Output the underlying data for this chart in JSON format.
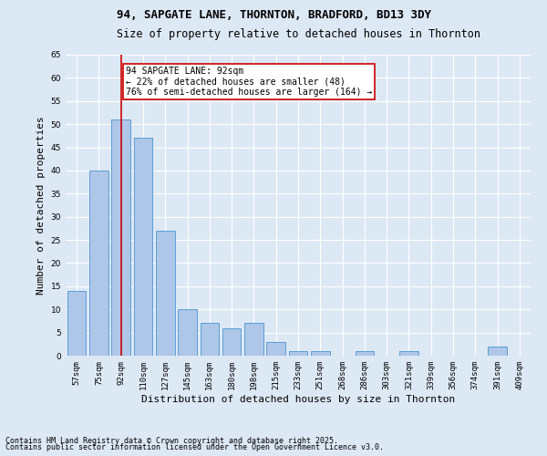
{
  "title": "94, SAPGATE LANE, THORNTON, BRADFORD, BD13 3DY",
  "subtitle": "Size of property relative to detached houses in Thornton",
  "xlabel": "Distribution of detached houses by size in Thornton",
  "ylabel": "Number of detached properties",
  "categories": [
    "57sqm",
    "75sqm",
    "92sqm",
    "110sqm",
    "127sqm",
    "145sqm",
    "163sqm",
    "180sqm",
    "198sqm",
    "215sqm",
    "233sqm",
    "251sqm",
    "268sqm",
    "286sqm",
    "303sqm",
    "321sqm",
    "339sqm",
    "356sqm",
    "374sqm",
    "391sqm",
    "409sqm"
  ],
  "values": [
    14,
    40,
    51,
    47,
    27,
    10,
    7,
    6,
    7,
    3,
    1,
    1,
    0,
    1,
    0,
    1,
    0,
    0,
    0,
    2,
    0
  ],
  "bar_color": "#aec6e8",
  "bar_edge_color": "#5a9fd4",
  "highlight_index": 2,
  "highlight_line_color": "#cc0000",
  "ylim": [
    0,
    65
  ],
  "yticks": [
    0,
    5,
    10,
    15,
    20,
    25,
    30,
    35,
    40,
    45,
    50,
    55,
    60,
    65
  ],
  "annotation_text": "94 SAPGATE LANE: 92sqm\n← 22% of detached houses are smaller (48)\n76% of semi-detached houses are larger (164) →",
  "annotation_box_color": "#ffffff",
  "annotation_box_edge_color": "#cc0000",
  "footer_line1": "Contains HM Land Registry data © Crown copyright and database right 2025.",
  "footer_line2": "Contains public sector information licensed under the Open Government Licence v3.0.",
  "background_color": "#dde8f5",
  "grid_color": "#ffffff",
  "title_fontsize": 9,
  "subtitle_fontsize": 8.5,
  "tick_fontsize": 6.5,
  "ylabel_fontsize": 8,
  "xlabel_fontsize": 8,
  "annotation_fontsize": 7,
  "footer_fontsize": 6
}
